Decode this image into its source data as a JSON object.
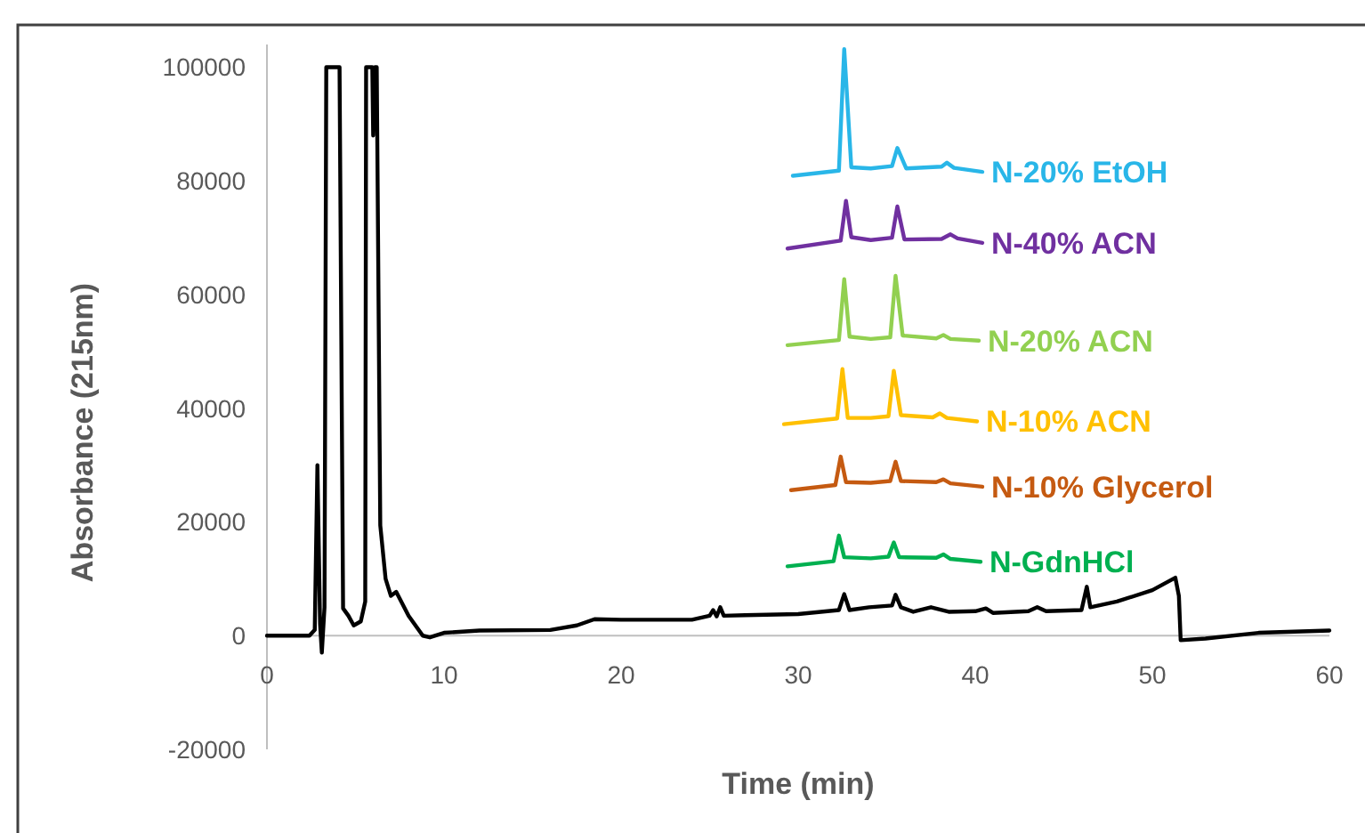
{
  "chart_data": {
    "type": "line",
    "xlabel": "Time (min)",
    "ylabel": "Absorbance (215nm)",
    "xlim": [
      0,
      60
    ],
    "xticks": [
      0,
      10,
      20,
      30,
      40,
      50,
      60
    ],
    "ylim": [
      -20000,
      104000
    ],
    "yticks": [
      -20000,
      0,
      20000,
      40000,
      60000,
      80000,
      100000
    ],
    "grid": false,
    "series": [
      {
        "color": "#000000",
        "x": [
          0,
          2.4,
          2.7,
          2.85,
          3.0,
          3.1,
          3.25,
          3.35,
          4.1,
          4.3,
          4.6,
          4.9,
          5.3,
          5.55,
          5.6,
          5.95,
          6.0,
          6.1,
          6.2,
          6.4,
          6.7,
          7.0,
          7.3,
          8.0,
          8.8,
          9.2,
          10,
          12,
          16,
          17.5,
          18.5,
          20,
          24,
          25,
          25.2,
          25.4,
          25.6,
          25.8,
          27,
          30,
          32.3,
          32.6,
          32.9,
          34,
          35.3,
          35.5,
          35.8,
          36.5,
          37.5,
          38.5,
          40,
          40.6,
          41,
          43,
          43.5,
          44,
          46,
          46.3,
          46.5,
          48,
          50,
          51.3,
          51.5,
          51.6,
          53,
          56,
          60
        ],
        "values": [
          0,
          0,
          1000,
          30000,
          2000,
          -3000,
          5000,
          100000,
          100000,
          4800,
          3500,
          1800,
          2500,
          6000,
          100000,
          100000,
          88000,
          100000,
          100000,
          19400,
          10000,
          7000,
          7700,
          3500,
          0,
          -300,
          500,
          900,
          1000,
          1800,
          2900,
          2800,
          2800,
          3500,
          4500,
          3400,
          5000,
          3500,
          3600,
          3800,
          4500,
          7300,
          4500,
          5000,
          5300,
          7200,
          5000,
          4200,
          5000,
          4200,
          4300,
          4800,
          4000,
          4300,
          5000,
          4300,
          4500,
          8600,
          5000,
          6000,
          8000,
          10200,
          7000,
          -800,
          -500,
          500,
          900
        ]
      },
      {
        "name": "N-20% EtOH",
        "color": "#29b6e8",
        "x": [
          29.7,
          32.3,
          32.6,
          33.0,
          34.1,
          35.3,
          35.6,
          36.1,
          38.1,
          38.4,
          38.8,
          40.4
        ],
        "values": [
          80900,
          81800,
          103200,
          82400,
          82200,
          82600,
          85800,
          82200,
          82500,
          83200,
          82300,
          81600
        ]
      },
      {
        "name": "N-40% ACN",
        "color": "#7030a0",
        "x": [
          29.4,
          32.4,
          32.7,
          33.0,
          34.1,
          35.3,
          35.6,
          36.0,
          38.1,
          38.6,
          39.0,
          40.4
        ],
        "values": [
          68100,
          69500,
          76500,
          70100,
          69600,
          70000,
          75500,
          69700,
          69800,
          70600,
          69900,
          69100
        ]
      },
      {
        "name": "N-20% ACN",
        "color": "#92d050",
        "x": [
          29.4,
          32.3,
          32.6,
          32.9,
          34.1,
          35.2,
          35.5,
          35.9,
          37.8,
          38.2,
          38.6,
          40.2
        ],
        "values": [
          51100,
          52000,
          62700,
          52600,
          52200,
          52500,
          63300,
          52800,
          52300,
          52900,
          52200,
          51900
        ]
      },
      {
        "name": "N-10% ACN",
        "color": "#ffc000",
        "x": [
          29.2,
          32.2,
          32.5,
          32.8,
          34.1,
          35.1,
          35.4,
          35.8,
          37.6,
          38.0,
          38.4,
          40.1
        ],
        "values": [
          37200,
          38200,
          46900,
          38300,
          38300,
          38600,
          46600,
          38800,
          38400,
          39100,
          38300,
          37700
        ]
      },
      {
        "name": "N-10% Glycerol",
        "color": "#c55a11",
        "x": [
          29.6,
          32.1,
          32.4,
          32.7,
          34.1,
          35.2,
          35.5,
          35.8,
          37.8,
          38.2,
          38.6,
          40.4
        ],
        "values": [
          25600,
          26500,
          31500,
          27000,
          26900,
          27200,
          30600,
          27200,
          27000,
          27500,
          26800,
          26200
        ]
      },
      {
        "name": "N-GdnHCl",
        "color": "#00b050",
        "x": [
          29.4,
          32.0,
          32.3,
          32.6,
          34.1,
          35.1,
          35.4,
          35.7,
          37.8,
          38.2,
          38.6,
          40.3
        ],
        "values": [
          12200,
          13100,
          17600,
          13800,
          13600,
          13900,
          16400,
          13800,
          13700,
          14300,
          13500,
          13000
        ]
      }
    ]
  }
}
